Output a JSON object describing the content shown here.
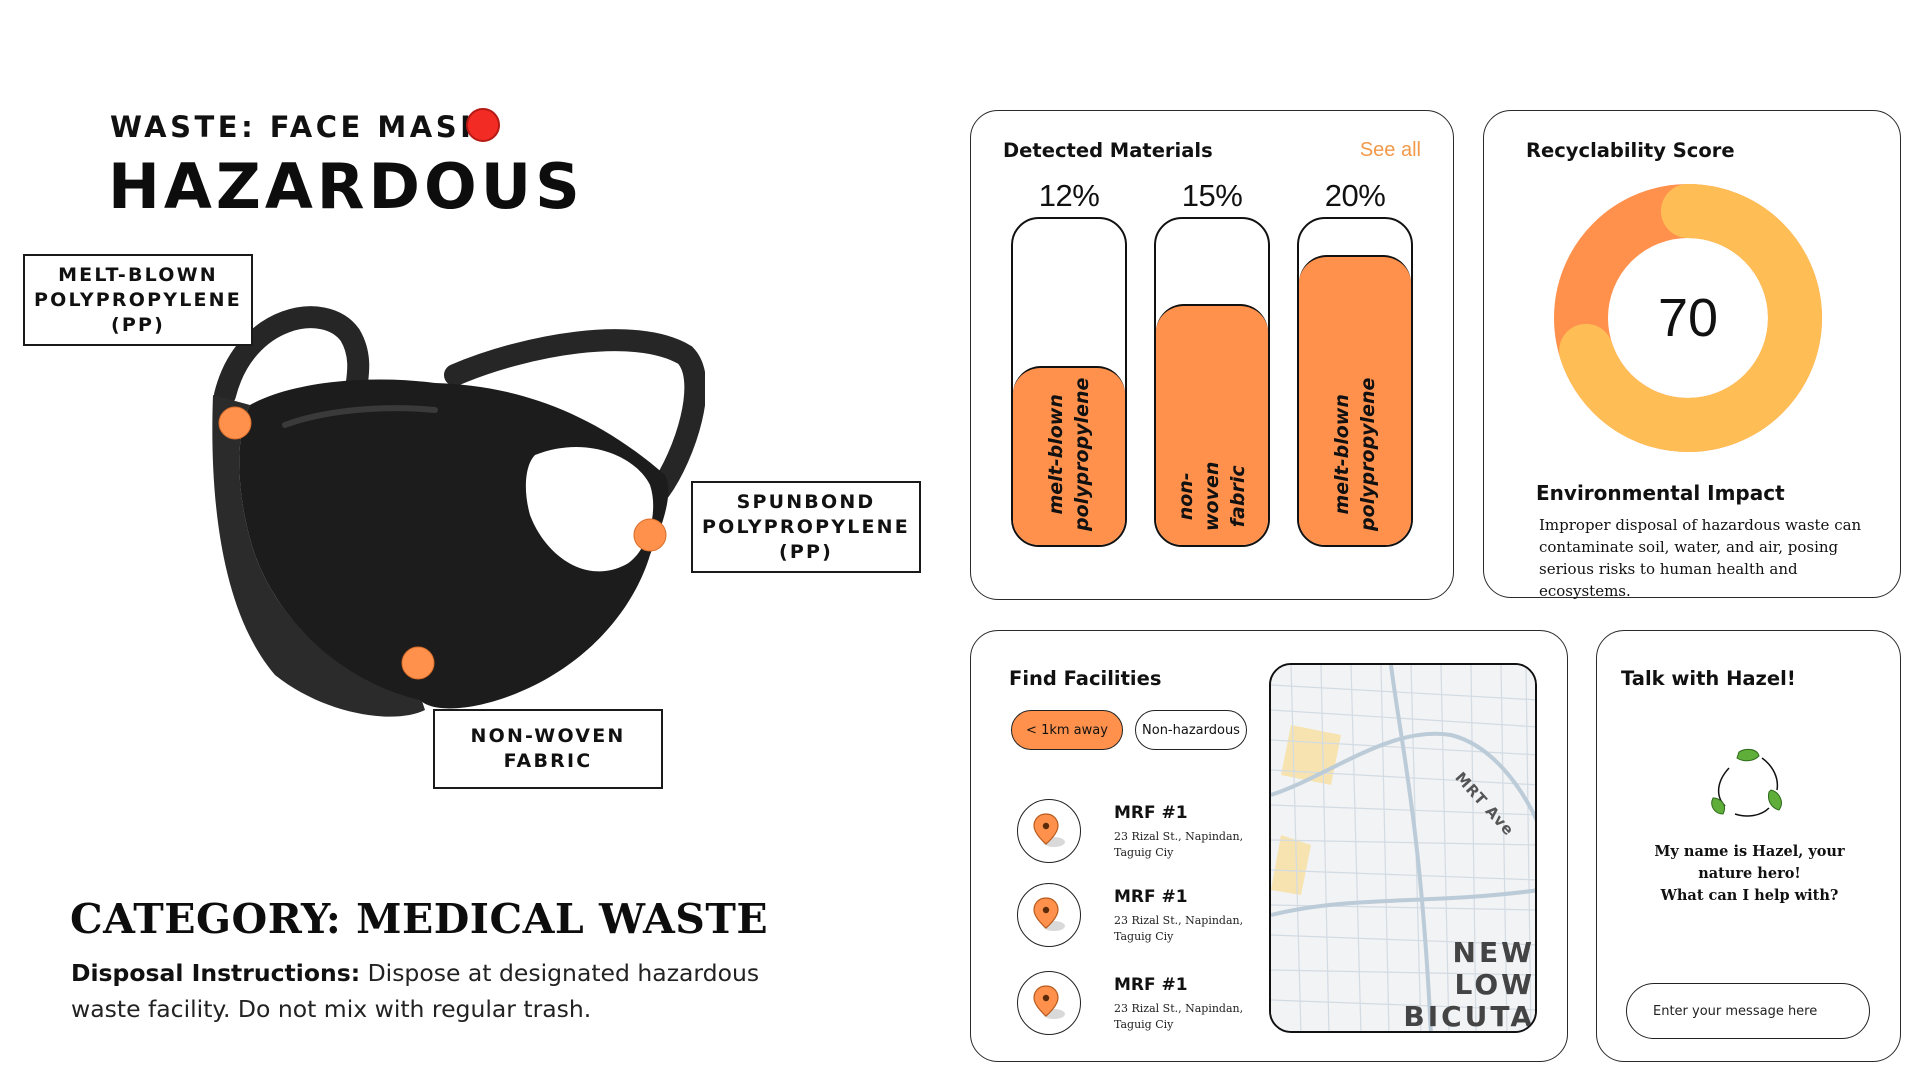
{
  "waste": {
    "name_label": "WASTE: FACE MASK",
    "hazard_status": "HAZARDOUS",
    "hazard_color": "#f22b25"
  },
  "callouts": {
    "melt_blown": "MELT-BLOWN\nPOLYPROPYLENE\n(PP)",
    "spunbond": "SPUNBOND\nPOLYPROPYLENE\n(PP)",
    "non_woven": "NON-WOVEN\nFABRIC"
  },
  "category": {
    "label": "CATEGORY: MEDICAL WASTE",
    "disposal_label": "Disposal Instructions:",
    "disposal_text": " Dispose at designated hazardous waste facility. Do not mix with regular trash."
  },
  "materials": {
    "title": "Detected Materials",
    "see_all": "See all",
    "accent_color": "#ff914d",
    "bars": [
      {
        "percent_label": "12%",
        "fill_fraction": 0.55,
        "label": "melt-blown\npolypropylene"
      },
      {
        "percent_label": "15%",
        "fill_fraction": 0.74,
        "label": "non-woven\nfabric"
      },
      {
        "percent_label": "20%",
        "fill_fraction": 0.89,
        "label": "melt-blown\npolypropylene"
      }
    ]
  },
  "score": {
    "title": "Recyclability Score",
    "value": "70",
    "value_number": 70,
    "ring_colors": [
      "#ffbe55",
      "#ff914d"
    ],
    "env_title": "Environmental Impact",
    "env_text": "Improper disposal of hazardous waste can contaminate soil, water, and air, posing serious risks to human health and ecosystems."
  },
  "facilities": {
    "title": "Find Facilities",
    "filters": [
      "< 1km away",
      "Non-hazardous"
    ],
    "items": [
      {
        "name": "MRF #1",
        "address": "23 Rizal St., Napindan, Taguig Ciy"
      },
      {
        "name": "MRF #1",
        "address": "23 Rizal St., Napindan, Taguig Ciy"
      },
      {
        "name": "MRF #1",
        "address": "23 Rizal St., Napindan, Taguig Ciy"
      }
    ],
    "map": {
      "road_label": "MRT Ave",
      "area_label": "NEW LOW\nBICUTA"
    }
  },
  "chat": {
    "title": "Talk with Hazel!",
    "message": "My name is Hazel, your\nnature hero!\nWhat can I help with?",
    "input_placeholder": "Enter your message here"
  }
}
